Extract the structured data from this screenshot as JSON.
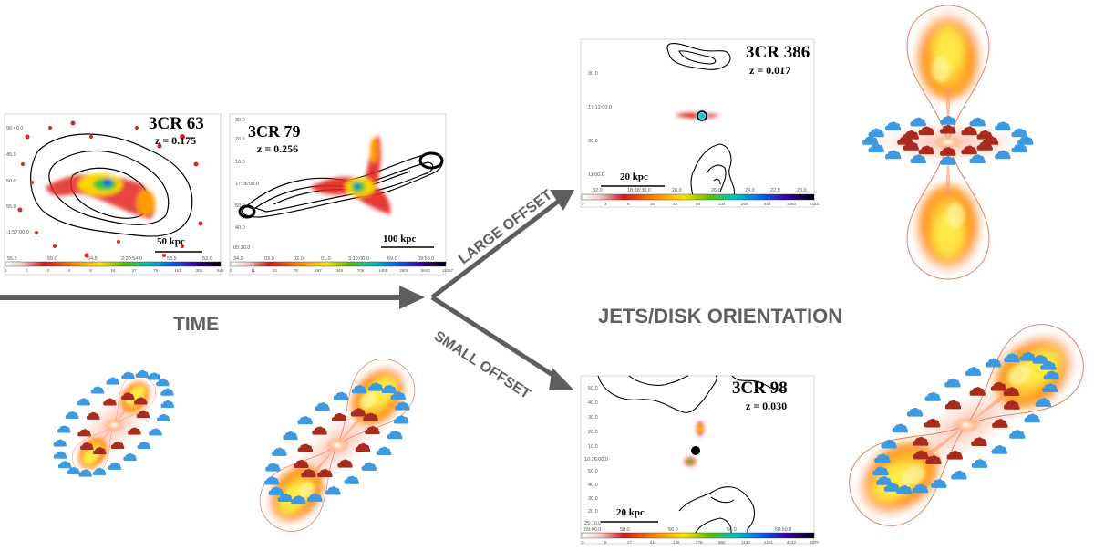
{
  "labels": {
    "time": "TIME",
    "large_offset": "LARGE OFFSET",
    "small_offset": "SMALL OFFSET",
    "jets_disk": "JETS/DISK ORIENTATION"
  },
  "maps": {
    "m63": {
      "title": "3CR 63",
      "z": "z = 0.175",
      "scale": "50 kpc",
      "yticks": [
        "56:40.0",
        "45.0",
        "50.0",
        "55.0",
        "-1:57:00.0"
      ],
      "xticks": [
        "55.5",
        "55.0",
        "54.5",
        "2:20:54.0",
        "53.5",
        "53.0"
      ],
      "cticks": [
        "0",
        "1",
        "2",
        "4",
        "8",
        "16",
        "27",
        "75",
        "151",
        "301",
        "546"
      ]
    },
    "m79": {
      "title": "3CR 79",
      "z": "z = 0.256",
      "scale": "100 kpc",
      "yticks": [
        "30.0",
        "20.0",
        "10.0",
        "17:06:00.0",
        "50.0",
        "40.0",
        "05:30.0"
      ],
      "xticks": [
        "34.0",
        "03.0",
        "02.0",
        "01.0",
        "3:10:00.0",
        "59.0",
        "09:58.0"
      ],
      "cticks": [
        "0",
        "11",
        "33",
        "78",
        "167",
        "348",
        "706",
        "1405",
        "2805",
        "5643",
        "11267"
      ]
    },
    "m386": {
      "title": "3CR 386",
      "z": "z = 0.017",
      "scale": "20 kpc",
      "yticks": [
        "30.0",
        "17:12:00.0",
        "30.0",
        "11:00.0"
      ],
      "xticks": [
        "32.0",
        "18:38:30.0",
        "28.0",
        "26.0",
        "24.0",
        "22.0",
        "20.0"
      ],
      "cticks": [
        "0",
        "3",
        "6",
        "15",
        "33",
        "66",
        "134",
        "269",
        "542",
        "1080",
        "2153"
      ]
    },
    "m98": {
      "title": "3CR 98",
      "z": "z = 0.030",
      "scale": "20 kpc",
      "yticks": [
        "50.0",
        "40.0",
        "30.0",
        "20.0",
        "10.0",
        "10:26:00.0",
        "50.0",
        "40.0",
        "30.0",
        "20.0",
        "25:10.0"
      ],
      "xticks": [
        "59:00.0",
        "58.0",
        "56.0",
        "54.0",
        "58:50.0"
      ],
      "cticks": [
        "0",
        "8",
        "27",
        "61",
        "135",
        "278",
        "560",
        "1130",
        "2261",
        "4532",
        "9070"
      ]
    }
  },
  "colors": {
    "arrow": "#5e5e5e",
    "label": "#606060",
    "cloud_blue": "#3d9ae0",
    "cloud_red": "#aa2a1e",
    "lobe_outline": "#e08070",
    "jet_core": "#ffe34a",
    "jet_mid": "#ff8a1a"
  },
  "icons": [
    "cloud-icon",
    "jet-lobe-icon",
    "radio-contour-map",
    "color-scale-bar",
    "time-arrow"
  ]
}
